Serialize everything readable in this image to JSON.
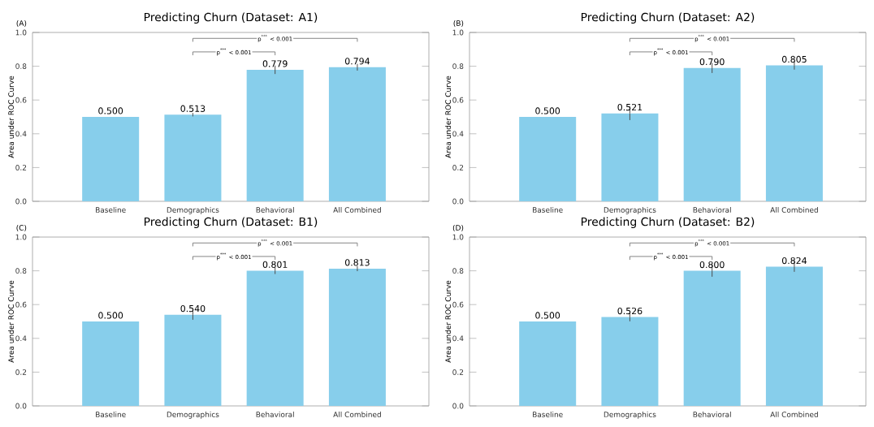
{
  "chart_data": [
    {
      "type": "bar",
      "title": "Predicting Churn (Dataset: A1)",
      "ylabel": "Area under ROC Curve",
      "categories": [
        "Baseline",
        "Demographics",
        "Behavioral",
        "All Combined"
      ],
      "values": [
        0.5,
        0.513,
        0.779,
        0.794
      ],
      "value_labels": [
        "0.500",
        "0.513",
        "0.779",
        "0.794"
      ],
      "errors": [
        null,
        0.01,
        0.025,
        0.02
      ],
      "color": "#87ceeb",
      "data_labels": true,
      "ylim": [
        0,
        1
      ],
      "yticks": [
        {
          "value": 0,
          "label": "0.0"
        },
        {
          "value": 0.2,
          "label": "0.2"
        },
        {
          "value": 0.4,
          "label": "0.4"
        },
        {
          "value": 0.6,
          "label": "0.6"
        },
        {
          "value": 0.8,
          "label": "0.8"
        },
        {
          "value": 1,
          "label": "1.0"
        }
      ],
      "annotations": [
        "(A)",
        "p$^{***}$ < 0.001",
        "p$^{***}$ < 0.001"
      ]
    },
    {
      "type": "bar",
      "title": "Predicting Churn (Dataset: A2)",
      "ylabel": "Area under ROC Curve",
      "categories": [
        "Baseline",
        "Demographics",
        "Behavioral",
        "All Combined"
      ],
      "values": [
        0.5,
        0.521,
        0.79,
        0.805
      ],
      "value_labels": [
        "0.500",
        "0.521",
        "0.790",
        "0.805"
      ],
      "errors": [
        null,
        0.04,
        0.03,
        0.025
      ],
      "color": "#87ceeb",
      "data_labels": true,
      "ylim": [
        0,
        1
      ],
      "yticks": [
        {
          "value": 0,
          "label": "0.0"
        },
        {
          "value": 0.2,
          "label": "0.2"
        },
        {
          "value": 0.4,
          "label": "0.4"
        },
        {
          "value": 0.6,
          "label": "0.6"
        },
        {
          "value": 0.8,
          "label": "0.8"
        },
        {
          "value": 1,
          "label": "1.0"
        }
      ],
      "annotations": [
        "(B)",
        "p$^{***}$ < 0.001",
        "p$^{***}$ < 0.001"
      ]
    },
    {
      "type": "bar",
      "title": "Predicting Churn (Dataset: B1)",
      "ylabel": "Area under ROC Curve",
      "categories": [
        "Baseline",
        "Demographics",
        "Behavioral",
        "All Combined"
      ],
      "values": [
        0.5,
        0.54,
        0.801,
        0.813
      ],
      "value_labels": [
        "0.500",
        "0.540",
        "0.801",
        "0.813"
      ],
      "errors": [
        null,
        0.03,
        0.02,
        0.015
      ],
      "color": "#87ceeb",
      "data_labels": true,
      "ylim": [
        0,
        1
      ],
      "yticks": [
        {
          "value": 0,
          "label": "0.0"
        },
        {
          "value": 0.2,
          "label": "0.2"
        },
        {
          "value": 0.4,
          "label": "0.4"
        },
        {
          "value": 0.6,
          "label": "0.6"
        },
        {
          "value": 0.8,
          "label": "0.8"
        },
        {
          "value": 1,
          "label": "1.0"
        }
      ],
      "annotations": [
        "(C)",
        "p$^{***}$ < 0.001",
        "p$^{***}$ < 0.001"
      ]
    },
    {
      "type": "bar",
      "title": "Predicting Churn (Dataset: B2)",
      "ylabel": "Area under ROC Curve",
      "categories": [
        "Baseline",
        "Demographics",
        "Behavioral",
        "All Combined"
      ],
      "values": [
        0.5,
        0.526,
        0.8,
        0.824
      ],
      "value_labels": [
        "0.500",
        "0.526",
        "0.800",
        "0.824"
      ],
      "errors": [
        null,
        0.025,
        0.035,
        0.03
      ],
      "color": "#87ceeb",
      "data_labels": true,
      "ylim": [
        0,
        1
      ],
      "yticks": [
        {
          "value": 0,
          "label": "0.0"
        },
        {
          "value": 0.2,
          "label": "0.2"
        },
        {
          "value": 0.4,
          "label": "0.4"
        },
        {
          "value": 0.6,
          "label": "0.6"
        },
        {
          "value": 0.8,
          "label": "0.8"
        },
        {
          "value": 1,
          "label": "1.0"
        }
      ],
      "annotations": [
        "(D)",
        "p$^{***}$ < 0.001",
        "p$^{***}$ < 0.001"
      ]
    }
  ]
}
